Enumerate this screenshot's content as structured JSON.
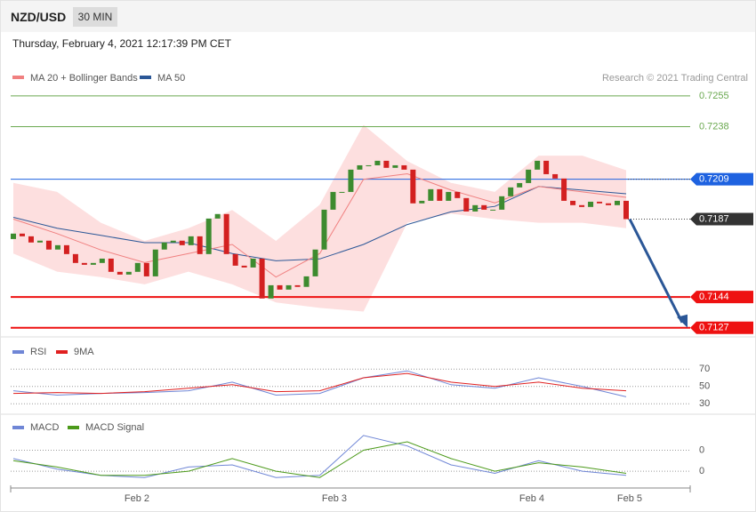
{
  "header": {
    "symbol": "NZD/USD",
    "timeframe": "30 MIN",
    "date": "Thursday, February 4, 2021 12:17:39 PM CET"
  },
  "chart_data": [
    {
      "type": "candlestick",
      "legend": [
        "MA 20 + Bollinger Bands",
        "MA 50"
      ],
      "legend_colors": [
        "#f08080",
        "#2b5797"
      ],
      "credit": "Research © 2021 Trading Central",
      "ylim": [
        0.7122,
        0.7278
      ],
      "up_color": "#3d8b2f",
      "down_color": "#d32020",
      "first_open": 0.7176,
      "close": [
        0.7179,
        0.71775,
        0.71741,
        0.71751,
        0.71702,
        0.71726,
        0.71677,
        0.71628,
        0.71618,
        0.71628,
        0.71652,
        0.71579,
        0.71564,
        0.71579,
        0.71628,
        0.71554,
        0.71702,
        0.71741,
        0.71751,
        0.71726,
        0.71775,
        0.71677,
        0.71873,
        0.71898,
        0.71677,
        0.71613,
        0.71603,
        0.71652,
        0.71432,
        0.71505,
        0.71481,
        0.71505,
        0.71496,
        0.71554,
        0.71702,
        0.71922,
        0.7202,
        0.7202,
        0.72143,
        0.72167,
        0.72167,
        0.72192,
        0.72153,
        0.72167,
        0.72143,
        0.71957,
        0.71971,
        0.72035,
        0.71971,
        0.7202,
        0.71986,
        0.71912,
        0.71947,
        0.71922,
        0.71922,
        0.71996,
        0.72045,
        0.72069,
        0.72143,
        0.72192,
        0.72118,
        0.72094,
        0.71971,
        0.71947,
        0.71937,
        0.71966,
        0.71957,
        0.71947,
        0.71971,
        0.7187
      ],
      "bb_upper": [
        0.7207,
        0.7202,
        0.7185,
        0.7175,
        0.7182,
        0.7192,
        0.7175,
        0.7195,
        0.7239,
        0.7219,
        0.7207,
        0.7202,
        0.7222,
        0.7222,
        0.7214
      ],
      "bb_lower": [
        0.7168,
        0.7158,
        0.7155,
        0.7151,
        0.7158,
        0.7151,
        0.7141,
        0.7138,
        0.7136,
        0.7185,
        0.719,
        0.7187,
        0.7185,
        0.7185,
        0.7182
      ],
      "ma20": [
        0.7187,
        0.7179,
        0.717,
        0.7163,
        0.7168,
        0.7173,
        0.7155,
        0.7168,
        0.7209,
        0.7212,
        0.7203,
        0.7196,
        0.7205,
        0.7202,
        0.7199
      ],
      "ma50": [
        0.7188,
        0.7182,
        0.7178,
        0.7174,
        0.7174,
        0.7168,
        0.7164,
        0.7165,
        0.7173,
        0.7184,
        0.7191,
        0.7194,
        0.7205,
        0.7203,
        0.7201
      ],
      "levels": [
        {
          "value": 0.7255,
          "color": "#6aa84f",
          "boxed": false,
          "width": 1
        },
        {
          "value": 0.7238,
          "color": "#6aa84f",
          "boxed": false,
          "width": 1
        },
        {
          "value": 0.7209,
          "color": "#1e62e0",
          "boxed": true,
          "width": 1
        },
        {
          "value": 0.7187,
          "color": "#333333",
          "boxed": true,
          "width": 1,
          "dotted": true
        },
        {
          "value": 0.7144,
          "color": "#ee1111",
          "boxed": true,
          "width": 2
        },
        {
          "value": 0.7127,
          "color": "#ee1111",
          "boxed": true,
          "width": 2
        }
      ]
    },
    {
      "type": "line",
      "ylim": [
        20,
        100
      ],
      "yticks": [
        70,
        50,
        30
      ],
      "series": [
        {
          "name": "RSI",
          "color": "#6f86d6",
          "values": [
            45,
            40,
            42,
            43,
            45,
            55,
            40,
            42,
            60,
            68,
            52,
            48,
            60,
            50,
            38
          ]
        },
        {
          "name": "9MA",
          "color": "#e02020",
          "values": [
            42,
            43,
            42,
            44,
            48,
            52,
            44,
            45,
            60,
            65,
            55,
            50,
            55,
            48,
            45
          ]
        }
      ]
    },
    {
      "type": "line",
      "ylim": [
        -0.0008,
        0.0025
      ],
      "yticks": [
        {
          "value": 0.001,
          "label": "0"
        },
        {
          "value": 0,
          "label": "0"
        }
      ],
      "series": [
        {
          "name": "MACD",
          "color": "#6f86d6",
          "values": [
            0.0006,
            0.0001,
            -0.0002,
            -0.0003,
            0.0002,
            0.0003,
            -0.0003,
            -0.0002,
            0.0017,
            0.0012,
            0.0003,
            -0.0001,
            0.0005,
            0,
            -0.0002
          ]
        },
        {
          "name": "MACD Signal",
          "color": "#4c9a1a",
          "values": [
            0.0005,
            0.0002,
            -0.0002,
            -0.0002,
            0,
            0.0006,
            0,
            -0.0003,
            0.001,
            0.0014,
            0.0006,
            0,
            0.0004,
            0.0002,
            -0.0001
          ]
        }
      ],
      "xticks": [
        "Feb 2",
        "Feb 3",
        "Feb 4",
        "Feb 5"
      ]
    }
  ]
}
